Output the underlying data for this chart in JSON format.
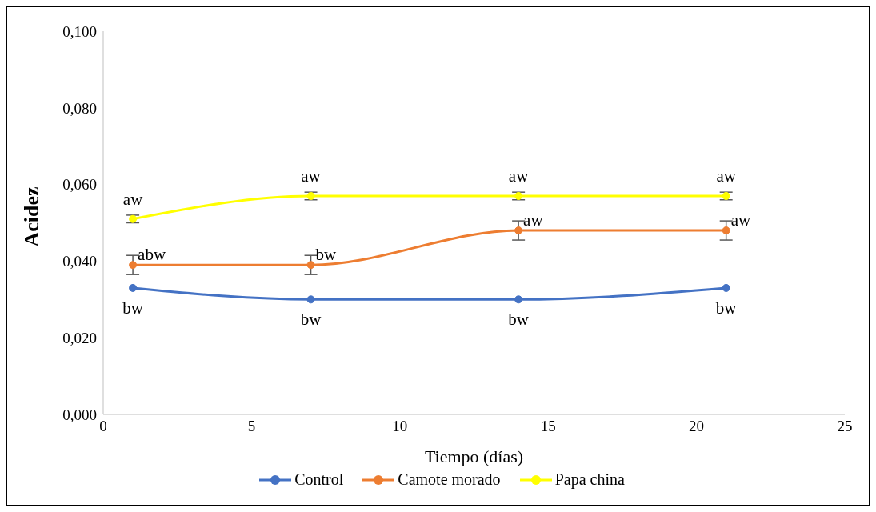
{
  "chart_data": {
    "type": "line",
    "xlabel": "Tiempo (días)",
    "ylabel": "Acidez",
    "x": [
      1,
      7,
      14,
      21
    ],
    "series": [
      {
        "name": "Control",
        "color": "#4472c4",
        "values": [
          0.033,
          0.03,
          0.03,
          0.033
        ]
      },
      {
        "name": "Camote morado",
        "color": "#ed7d31",
        "values": [
          0.039,
          0.039,
          0.048,
          0.048
        ],
        "errors": [
          0.0025,
          0.0025,
          0.0025,
          0.0025
        ]
      },
      {
        "name": "Papa china",
        "color": "#ffff00",
        "values": [
          0.051,
          0.057,
          0.057,
          0.057
        ],
        "errors": [
          0.001,
          0.001,
          0.001,
          0.001
        ]
      }
    ],
    "xlim": [
      0,
      25
    ],
    "xticks": [
      0,
      5,
      10,
      15,
      20,
      25
    ],
    "ylim": [
      0,
      0.1
    ],
    "yticks": [
      {
        "value": 0,
        "label": "0,000"
      },
      {
        "value": 0.02,
        "label": "0,020"
      },
      {
        "value": 0.04,
        "label": "0,040"
      },
      {
        "value": 0.06,
        "label": "0,060"
      },
      {
        "value": 0.08,
        "label": "0,080"
      },
      {
        "value": 0.1,
        "label": "0,100"
      }
    ],
    "annotations": [
      {
        "text": "bw",
        "x": 1,
        "y": 0.033
      },
      {
        "text": "bw",
        "x": 7,
        "y": 0.03
      },
      {
        "text": "bw",
        "x": 14,
        "y": 0.03
      },
      {
        "text": "bw",
        "x": 21,
        "y": 0.033
      },
      {
        "text": "abw",
        "x": 1,
        "y": 0.039
      },
      {
        "text": "bw",
        "x": 7,
        "y": 0.039
      },
      {
        "text": "aw",
        "x": 14,
        "y": 0.048
      },
      {
        "text": "aw",
        "x": 21,
        "y": 0.048
      },
      {
        "text": "aw",
        "x": 1,
        "y": 0.051
      },
      {
        "text": "aw",
        "x": 7,
        "y": 0.057
      },
      {
        "text": "aw",
        "x": 14,
        "y": 0.057
      },
      {
        "text": "aw",
        "x": 21,
        "y": 0.057
      }
    ],
    "grid": false,
    "legend": "bottom",
    "marker": "circle",
    "line_style": "solid"
  }
}
